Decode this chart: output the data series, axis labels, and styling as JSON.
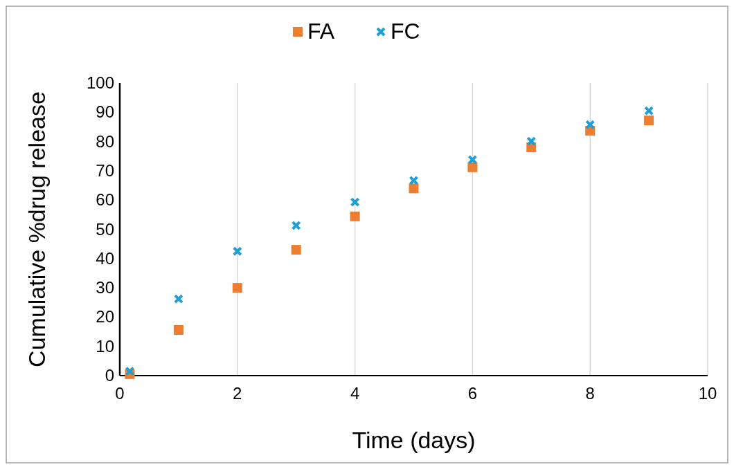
{
  "chart_data": {
    "type": "scatter",
    "xlabel": "Time (days)",
    "ylabel": "Cumulative %drug release",
    "x": [
      0.17,
      1,
      2,
      3,
      4,
      5,
      6,
      7,
      8,
      9
    ],
    "xlim": [
      0,
      10
    ],
    "xticks": [
      0,
      2,
      4,
      6,
      8,
      10
    ],
    "ylim": [
      0,
      100
    ],
    "yticks": [
      0,
      10,
      20,
      30,
      40,
      50,
      60,
      70,
      80,
      90,
      100
    ],
    "grid": "x",
    "legend": "top",
    "series": [
      {
        "name": "FA",
        "color": "#ed7d31",
        "marker": "square",
        "values": [
          0.5,
          15.6,
          30,
          43,
          54.4,
          64,
          71.2,
          78,
          83.7,
          87.2
        ]
      },
      {
        "name": "FC",
        "color": "#1f9fd5",
        "marker": "cross",
        "values": [
          1.5,
          26.2,
          42.5,
          51.3,
          59.3,
          66.7,
          73.8,
          80.1,
          85.8,
          90.5
        ]
      }
    ]
  }
}
